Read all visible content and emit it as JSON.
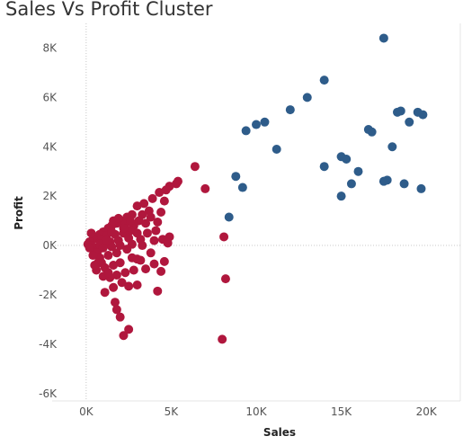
{
  "chart_data": {
    "type": "scatter",
    "title": "Sales Vs Profit Cluster",
    "xlabel": "Sales",
    "ylabel": "Profit",
    "xlim": [
      -2000,
      22000
    ],
    "ylim": [
      -6300,
      9000
    ],
    "x_ticks": [
      {
        "value": 0,
        "label": "0K"
      },
      {
        "value": 5000,
        "label": "5K"
      },
      {
        "value": 10000,
        "label": "10K"
      },
      {
        "value": 15000,
        "label": "15K"
      },
      {
        "value": 20000,
        "label": "20K"
      }
    ],
    "y_ticks": [
      {
        "value": 8000,
        "label": "8K"
      },
      {
        "value": 6000,
        "label": "6K"
      },
      {
        "value": 4000,
        "label": "4K"
      },
      {
        "value": 2000,
        "label": "2K"
      },
      {
        "value": 0,
        "label": "0K"
      },
      {
        "value": -2000,
        "label": "-2K"
      },
      {
        "value": -4000,
        "label": "-4K"
      },
      {
        "value": -6000,
        "label": "-6K"
      }
    ],
    "grid": false,
    "zero_lines": true,
    "series": [
      {
        "color": "#2e5c8a",
        "points": [
          [
            17500,
            8400
          ],
          [
            14000,
            6700
          ],
          [
            13000,
            6000
          ],
          [
            12000,
            5500
          ],
          [
            10500,
            5000
          ],
          [
            10000,
            4900
          ],
          [
            9400,
            4650
          ],
          [
            11200,
            3900
          ],
          [
            8800,
            2800
          ],
          [
            9200,
            2350
          ],
          [
            8400,
            1150
          ],
          [
            18300,
            5400
          ],
          [
            18500,
            5450
          ],
          [
            19500,
            5400
          ],
          [
            19800,
            5300
          ],
          [
            19000,
            5000
          ],
          [
            16600,
            4700
          ],
          [
            16800,
            4600
          ],
          [
            18000,
            4000
          ],
          [
            15000,
            3600
          ],
          [
            15300,
            3500
          ],
          [
            14000,
            3200
          ],
          [
            16000,
            3000
          ],
          [
            17500,
            2600
          ],
          [
            17700,
            2650
          ],
          [
            18700,
            2500
          ],
          [
            15600,
            2500
          ],
          [
            19700,
            2300
          ],
          [
            15000,
            2000
          ]
        ]
      },
      {
        "color": "#b0173d",
        "points": [
          [
            6400,
            3200
          ],
          [
            7000,
            2300
          ],
          [
            5400,
            2600
          ],
          [
            5300,
            2500
          ],
          [
            4900,
            2400
          ],
          [
            4700,
            2250
          ],
          [
            4300,
            2150
          ],
          [
            4600,
            1800
          ],
          [
            3900,
            1900
          ],
          [
            3400,
            1700
          ],
          [
            3000,
            1600
          ],
          [
            4400,
            1350
          ],
          [
            3700,
            1400
          ],
          [
            3300,
            1250
          ],
          [
            2700,
            1250
          ],
          [
            2400,
            1150
          ],
          [
            2000,
            1000
          ],
          [
            1800,
            900
          ],
          [
            1500,
            800
          ],
          [
            1300,
            700
          ],
          [
            1000,
            550
          ],
          [
            800,
            450
          ],
          [
            600,
            350
          ],
          [
            400,
            250
          ],
          [
            200,
            150
          ],
          [
            100,
            50
          ],
          [
            300,
            0
          ],
          [
            500,
            -100
          ],
          [
            700,
            -200
          ],
          [
            3800,
            1150
          ],
          [
            4200,
            950
          ],
          [
            3500,
            900
          ],
          [
            3100,
            1000
          ],
          [
            2800,
            800
          ],
          [
            2300,
            850
          ],
          [
            2600,
            600
          ],
          [
            4100,
            600
          ],
          [
            3600,
            500
          ],
          [
            3000,
            500
          ],
          [
            2200,
            500
          ],
          [
            1700,
            450
          ],
          [
            1200,
            400
          ],
          [
            900,
            250
          ],
          [
            4900,
            350
          ],
          [
            4500,
            250
          ],
          [
            4000,
            200
          ],
          [
            3200,
            250
          ],
          [
            2500,
            300
          ],
          [
            1900,
            200
          ],
          [
            1400,
            150
          ],
          [
            1100,
            100
          ],
          [
            800,
            50
          ],
          [
            4800,
            100
          ],
          [
            3300,
            0
          ],
          [
            2700,
            50
          ],
          [
            2000,
            0
          ],
          [
            1500,
            -50
          ],
          [
            1000,
            -100
          ],
          [
            600,
            -300
          ],
          [
            3800,
            -300
          ],
          [
            2400,
            -150
          ],
          [
            1800,
            -300
          ],
          [
            1300,
            -400
          ],
          [
            800,
            -500
          ],
          [
            3200,
            -600
          ],
          [
            2700,
            -500
          ],
          [
            2000,
            -700
          ],
          [
            1600,
            -800
          ],
          [
            1100,
            -900
          ],
          [
            700,
            -700
          ],
          [
            3000,
            -550
          ],
          [
            4600,
            -650
          ],
          [
            4000,
            -750
          ],
          [
            3500,
            -950
          ],
          [
            2800,
            -1000
          ],
          [
            2300,
            -1100
          ],
          [
            1800,
            -1200
          ],
          [
            1400,
            -1300
          ],
          [
            1000,
            -1250
          ],
          [
            600,
            -1000
          ],
          [
            4400,
            -1050
          ],
          [
            3000,
            -1600
          ],
          [
            2100,
            -1500
          ],
          [
            1600,
            -1700
          ],
          [
            1100,
            -1900
          ],
          [
            4200,
            -1850
          ],
          [
            2500,
            -1650
          ],
          [
            1700,
            -2300
          ],
          [
            1800,
            -2600
          ],
          [
            2000,
            -2900
          ],
          [
            2500,
            -3400
          ],
          [
            2200,
            -3650
          ],
          [
            8100,
            350
          ],
          [
            8200,
            -1350
          ],
          [
            8000,
            -3800
          ],
          [
            200,
            -100
          ],
          [
            400,
            -400
          ],
          [
            300,
            500
          ],
          [
            1200,
            200
          ],
          [
            900,
            -700
          ],
          [
            1500,
            550
          ],
          [
            2200,
            700
          ],
          [
            2600,
            1000
          ],
          [
            1600,
            1000
          ],
          [
            1900,
            1100
          ],
          [
            500,
            -800
          ],
          [
            1300,
            -1100
          ]
        ]
      }
    ]
  }
}
